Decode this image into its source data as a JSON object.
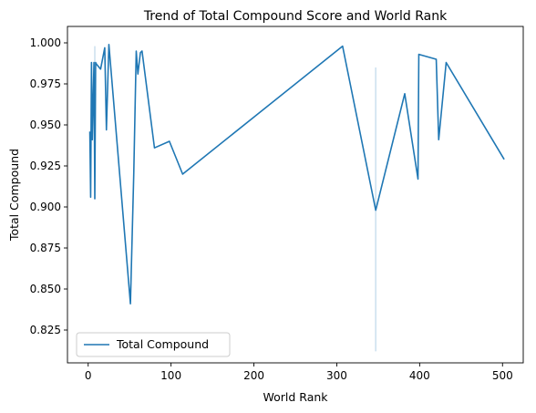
{
  "chart_data": {
    "type": "line",
    "title": "Trend of Total Compound Score and World Rank",
    "xlabel": "World Rank",
    "ylabel": "Total Compound",
    "xlim": [
      -25,
      525
    ],
    "ylim": [
      0.805,
      1.01
    ],
    "xticks": [
      0,
      100,
      200,
      300,
      400,
      500
    ],
    "xtick_labels": [
      "0",
      "100",
      "200",
      "300",
      "400",
      "500"
    ],
    "yticks": [
      0.825,
      0.85,
      0.875,
      0.9,
      0.925,
      0.95,
      0.975,
      1.0
    ],
    "ytick_labels": [
      "0.825",
      "0.850",
      "0.875",
      "0.900",
      "0.925",
      "0.950",
      "0.975",
      "1.000"
    ],
    "grid": false,
    "legend_position": "lower-left",
    "color": "#1f77b4",
    "series": [
      {
        "name": "Total Compound",
        "x": [
          2,
          3,
          4,
          5,
          7,
          8,
          9,
          10,
          15,
          20,
          22,
          25,
          51,
          55,
          58,
          60,
          63,
          65,
          80,
          98,
          114,
          307,
          347,
          382,
          398,
          399,
          420,
          423,
          432,
          502
        ],
        "y": [
          0.946,
          0.906,
          0.988,
          0.941,
          0.988,
          0.905,
          0.988,
          0.987,
          0.984,
          0.997,
          0.947,
          0.999,
          0.841,
          0.92,
          0.995,
          0.981,
          0.994,
          0.995,
          0.936,
          0.94,
          0.92,
          0.998,
          0.898,
          0.969,
          0.917,
          0.993,
          0.99,
          0.941,
          0.988,
          0.929
        ]
      }
    ],
    "uncertainty": [
      {
        "x": 8,
        "low": 0.905,
        "high": 0.998
      },
      {
        "x": 347,
        "low": 0.812,
        "high": 0.985
      }
    ]
  }
}
